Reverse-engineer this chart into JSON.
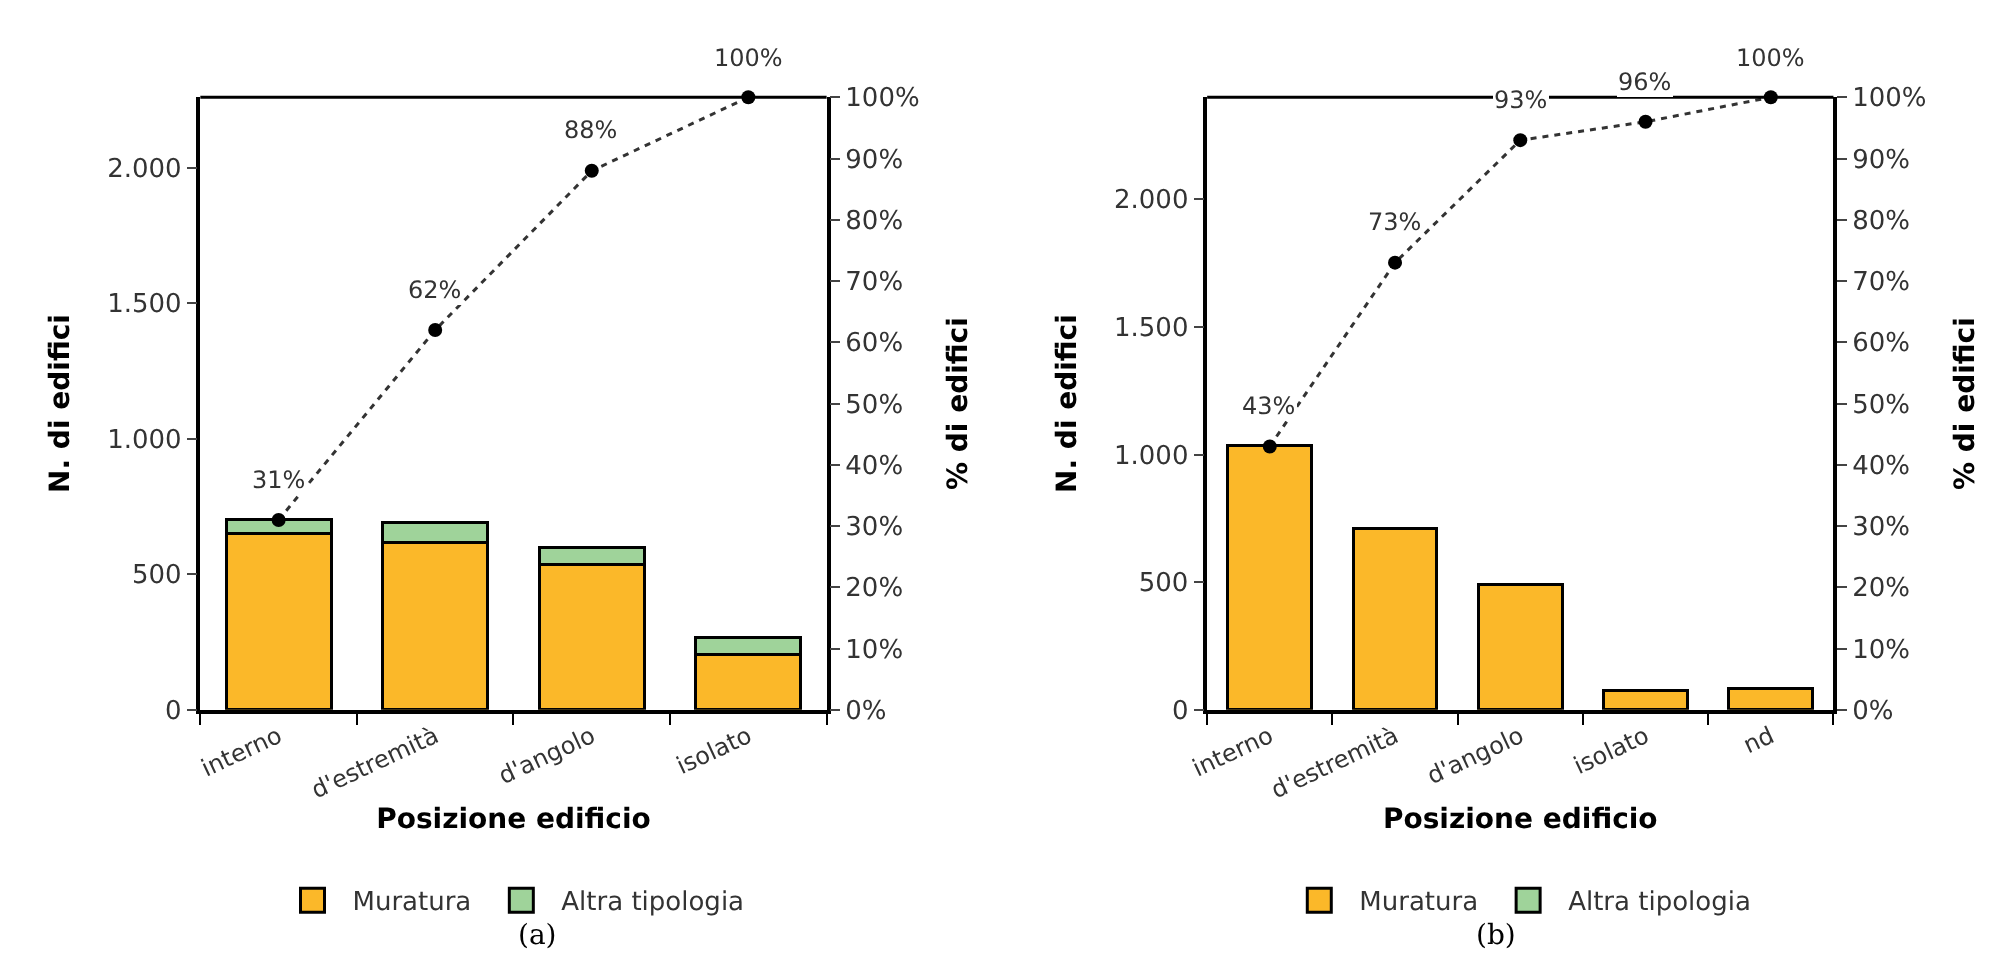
{
  "chart_data": [
    {
      "type": "bar",
      "stacked": true,
      "xlabel": "Posizione edificio",
      "ylabel": "N. di edifici",
      "y2label": "% di edifici",
      "legend": "bottom",
      "annotations": [
        "(a)"
      ],
      "categories": [
        "interno",
        "d'estremità",
        "d'angolo",
        "isolato"
      ],
      "series": [
        {
          "name": "Muratura",
          "color": "#fbb829",
          "values": [
            650,
            618,
            538,
            204
          ]
        },
        {
          "name": "Altra tipologia",
          "color": "#9fd39a",
          "values": [
            52,
            72,
            62,
            64
          ]
        },
        {
          "type": "line",
          "axis": "y2",
          "color": "#333333",
          "marker": "circle",
          "line_style": "dotted",
          "values": [
            31,
            62,
            88,
            100
          ],
          "value_labels": [
            "31%",
            "62%",
            "88%",
            "100%"
          ]
        }
      ],
      "ylim": [
        0,
        2260
      ],
      "yticks": [
        {
          "value": 0,
          "label": "0"
        },
        {
          "value": 500,
          "label": "500"
        },
        {
          "value": 1000,
          "label": "1.000"
        },
        {
          "value": 1500,
          "label": "1.500"
        },
        {
          "value": 2000,
          "label": "2.000"
        }
      ],
      "y2lim": [
        0,
        100
      ],
      "y2ticks": [
        {
          "value": 0,
          "label": "0%"
        },
        {
          "value": 10,
          "label": "10%"
        },
        {
          "value": 20,
          "label": "20%"
        },
        {
          "value": 30,
          "label": "30%"
        },
        {
          "value": 40,
          "label": "40%"
        },
        {
          "value": 50,
          "label": "50%"
        },
        {
          "value": 60,
          "label": "60%"
        },
        {
          "value": 70,
          "label": "70%"
        },
        {
          "value": 80,
          "label": "80%"
        },
        {
          "value": 90,
          "label": "90%"
        },
        {
          "value": 100,
          "label": "100%"
        }
      ]
    },
    {
      "type": "bar",
      "stacked": true,
      "xlabel": "Posizione edificio",
      "ylabel": "N. di edifici",
      "y2label": "% di edifici",
      "legend": "bottom",
      "annotations": [
        "(b)"
      ],
      "categories": [
        "interno",
        "d'estremità",
        "d'angolo",
        "isolato",
        "nd"
      ],
      "series": [
        {
          "name": "Muratura",
          "color": "#fbb829",
          "values": [
            1036,
            710,
            492,
            77,
            82
          ]
        },
        {
          "name": "Altra tipologia",
          "color": "#9fd39a",
          "values": [
            null,
            null,
            null,
            null,
            null
          ]
        },
        {
          "type": "line",
          "axis": "y2",
          "color": "#333333",
          "marker": "circle",
          "line_style": "dotted",
          "values": [
            43,
            73,
            93,
            96,
            100
          ],
          "value_labels": [
            "43%",
            "73%",
            "93%",
            "96%",
            "100%"
          ]
        }
      ],
      "ylim": [
        0,
        2400
      ],
      "yticks": [
        {
          "value": 0,
          "label": "0"
        },
        {
          "value": 500,
          "label": "500"
        },
        {
          "value": 1000,
          "label": "1.000"
        },
        {
          "value": 1500,
          "label": "1.500"
        },
        {
          "value": 2000,
          "label": "2.000"
        }
      ],
      "y2lim": [
        0,
        100
      ],
      "y2ticks": [
        {
          "value": 0,
          "label": "0%"
        },
        {
          "value": 10,
          "label": "10%"
        },
        {
          "value": 20,
          "label": "20%"
        },
        {
          "value": 30,
          "label": "30%"
        },
        {
          "value": 40,
          "label": "40%"
        },
        {
          "value": 50,
          "label": "50%"
        },
        {
          "value": 60,
          "label": "60%"
        },
        {
          "value": 70,
          "label": "70%"
        },
        {
          "value": 80,
          "label": "80%"
        },
        {
          "value": 90,
          "label": "90%"
        },
        {
          "value": 100,
          "label": "100%"
        }
      ]
    }
  ]
}
